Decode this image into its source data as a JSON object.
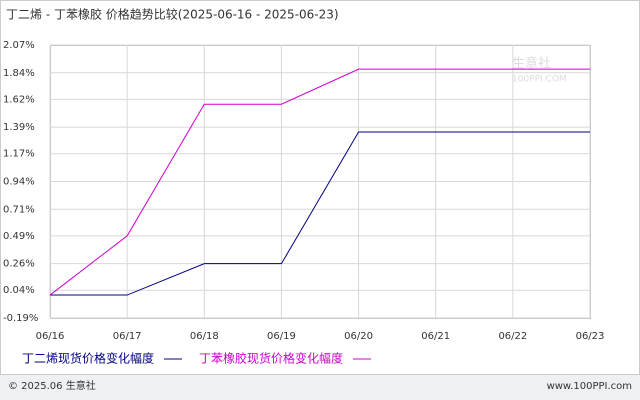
{
  "chart_data": {
    "type": "line",
    "title": "丁二烯 - 丁苯橡胶 价格趋势比较(2025-06-16 - 2025-06-23)",
    "categories": [
      "06/16",
      "06/17",
      "06/18",
      "06/19",
      "06/20",
      "06/21",
      "06/22",
      "06/23"
    ],
    "series": [
      {
        "name": "丁二烯现货价格变化幅度",
        "color": "#000080",
        "values": [
          0,
          0,
          0.26,
          0.26,
          1.35,
          1.35,
          1.35,
          1.35
        ]
      },
      {
        "name": "丁苯橡胶现货价格变化幅度",
        "color": "#cc00cc",
        "values": [
          0,
          0.49,
          1.58,
          1.58,
          1.87,
          1.87,
          1.87,
          1.87
        ]
      }
    ],
    "ylim": [
      -0.19,
      2.07
    ],
    "yticks": [
      {
        "value": -0.19,
        "label": "-0.19%"
      },
      {
        "value": 0.04,
        "label": "0.04%"
      },
      {
        "value": 0.26,
        "label": "0.26%"
      },
      {
        "value": 0.49,
        "label": "0.49%"
      },
      {
        "value": 0.71,
        "label": "0.71%"
      },
      {
        "value": 0.94,
        "label": "0.94%"
      },
      {
        "value": 1.17,
        "label": "1.17%"
      },
      {
        "value": 1.39,
        "label": "1.39%"
      },
      {
        "value": 1.62,
        "label": "1.62%"
      },
      {
        "value": 1.84,
        "label": "1.84%"
      },
      {
        "value": 2.07,
        "label": "2.07%"
      }
    ],
    "grid": true,
    "watermark": [
      "生意社",
      "100PPI.COM"
    ],
    "footer": {
      "left": "© 2025.06 生意社",
      "right": "www.100PPI.com"
    }
  }
}
